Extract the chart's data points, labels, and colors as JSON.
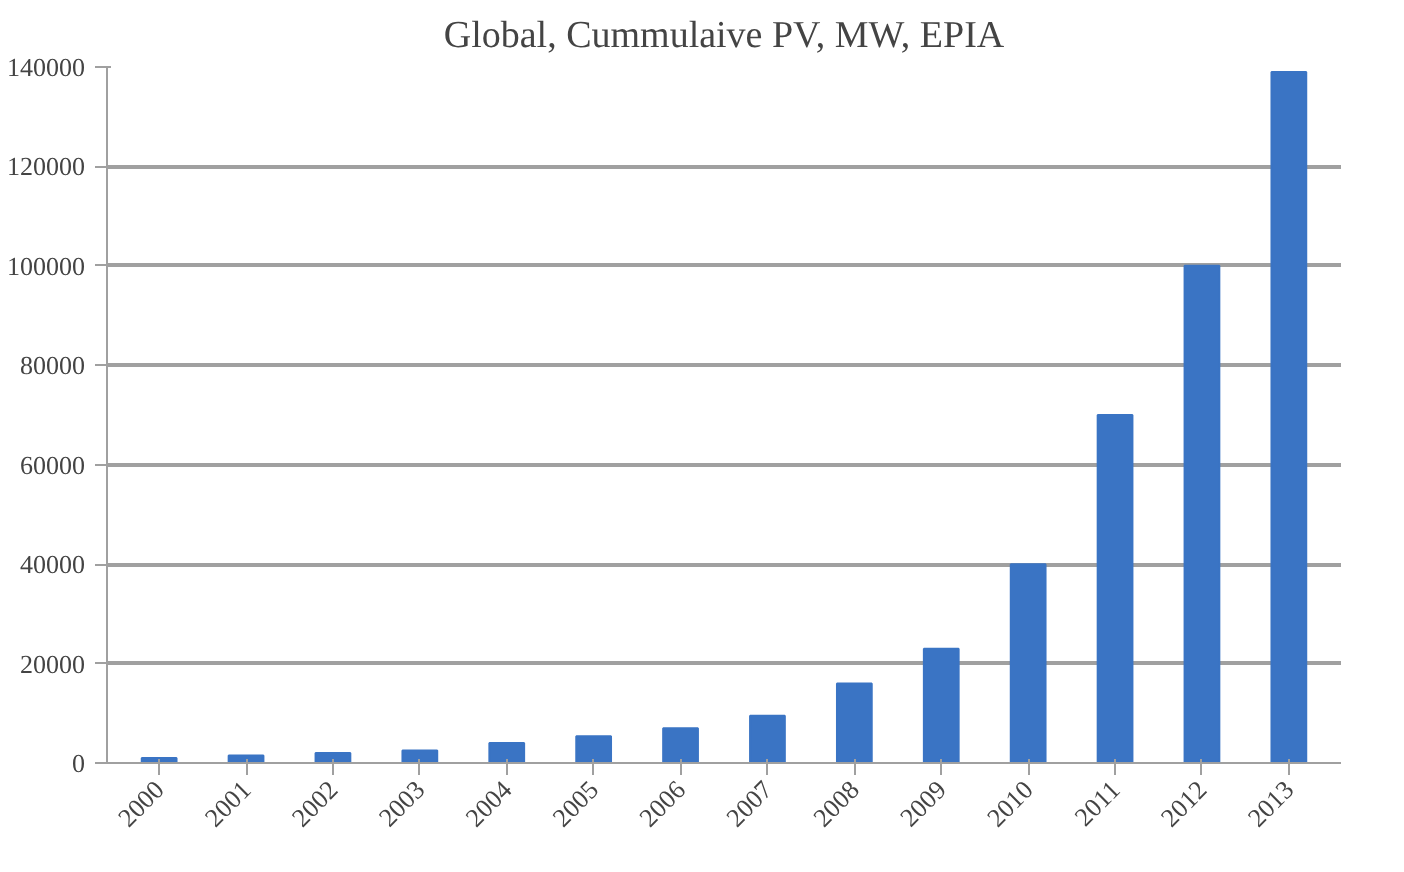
{
  "chart_data": {
    "type": "bar",
    "title": "Global, Cummulaive PV, MW, EPIA",
    "categories": [
      "2000",
      "2001",
      "2002",
      "2003",
      "2004",
      "2005",
      "2006",
      "2007",
      "2008",
      "2009",
      "2010",
      "2011",
      "2012",
      "2013"
    ],
    "values": [
      1000,
      1500,
      2000,
      2500,
      4000,
      5400,
      7000,
      9500,
      16000,
      23000,
      40000,
      70000,
      100000,
      139000
    ],
    "color": "#3a74c4",
    "ylim": [
      0,
      140000
    ],
    "yticks": [
      0,
      20000,
      40000,
      60000,
      80000,
      100000,
      120000,
      140000
    ],
    "grid": "y"
  }
}
